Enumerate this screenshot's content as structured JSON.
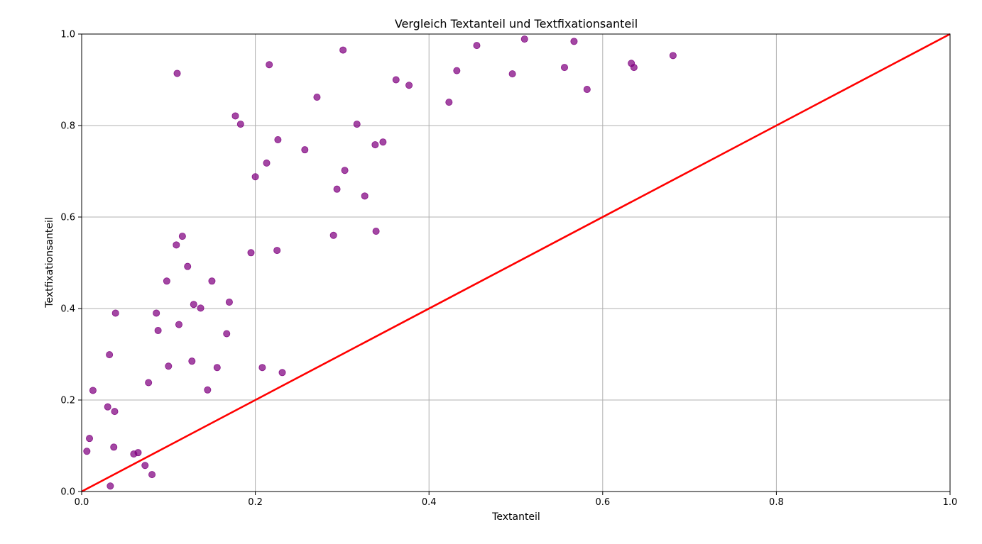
{
  "chart_data": {
    "type": "scatter",
    "title": "Vergleich Textanteil und Textfixationsanteil",
    "xlabel": "Textanteil",
    "ylabel": "Textfixationsanteil",
    "xlim": [
      0.0,
      1.0
    ],
    "ylim": [
      0.0,
      1.0
    ],
    "xticks": [
      "0.0",
      "0.2",
      "0.4",
      "0.6",
      "0.8",
      "1.0"
    ],
    "yticks": [
      "0.0",
      "0.2",
      "0.4",
      "0.6",
      "0.8",
      "1.0"
    ],
    "grid": true,
    "point_color": "#800080",
    "line_color": "#ff0000",
    "reference_line": {
      "x": [
        0.0,
        1.0
      ],
      "y": [
        0.0,
        1.0
      ]
    },
    "points": [
      {
        "x": 0.006,
        "y": 0.088
      },
      {
        "x": 0.009,
        "y": 0.116
      },
      {
        "x": 0.013,
        "y": 0.221
      },
      {
        "x": 0.03,
        "y": 0.185
      },
      {
        "x": 0.032,
        "y": 0.299
      },
      {
        "x": 0.033,
        "y": 0.012
      },
      {
        "x": 0.037,
        "y": 0.097
      },
      {
        "x": 0.038,
        "y": 0.175
      },
      {
        "x": 0.039,
        "y": 0.39
      },
      {
        "x": 0.06,
        "y": 0.082
      },
      {
        "x": 0.065,
        "y": 0.085
      },
      {
        "x": 0.073,
        "y": 0.057
      },
      {
        "x": 0.077,
        "y": 0.238
      },
      {
        "x": 0.081,
        "y": 0.037
      },
      {
        "x": 0.086,
        "y": 0.39
      },
      {
        "x": 0.088,
        "y": 0.352
      },
      {
        "x": 0.098,
        "y": 0.46
      },
      {
        "x": 0.1,
        "y": 0.274
      },
      {
        "x": 0.109,
        "y": 0.539
      },
      {
        "x": 0.11,
        "y": 0.914
      },
      {
        "x": 0.112,
        "y": 0.365
      },
      {
        "x": 0.116,
        "y": 0.558
      },
      {
        "x": 0.122,
        "y": 0.492
      },
      {
        "x": 0.127,
        "y": 0.285
      },
      {
        "x": 0.129,
        "y": 0.409
      },
      {
        "x": 0.137,
        "y": 0.401
      },
      {
        "x": 0.145,
        "y": 0.222
      },
      {
        "x": 0.15,
        "y": 0.46
      },
      {
        "x": 0.156,
        "y": 0.271
      },
      {
        "x": 0.167,
        "y": 0.345
      },
      {
        "x": 0.17,
        "y": 0.414
      },
      {
        "x": 0.177,
        "y": 0.821
      },
      {
        "x": 0.183,
        "y": 0.803
      },
      {
        "x": 0.195,
        "y": 0.522
      },
      {
        "x": 0.2,
        "y": 0.688
      },
      {
        "x": 0.208,
        "y": 0.271
      },
      {
        "x": 0.213,
        "y": 0.718
      },
      {
        "x": 0.216,
        "y": 0.933
      },
      {
        "x": 0.225,
        "y": 0.527
      },
      {
        "x": 0.226,
        "y": 0.769
      },
      {
        "x": 0.231,
        "y": 0.26
      },
      {
        "x": 0.257,
        "y": 0.747
      },
      {
        "x": 0.271,
        "y": 0.862
      },
      {
        "x": 0.29,
        "y": 0.56
      },
      {
        "x": 0.294,
        "y": 0.661
      },
      {
        "x": 0.301,
        "y": 0.965
      },
      {
        "x": 0.303,
        "y": 0.702
      },
      {
        "x": 0.317,
        "y": 0.803
      },
      {
        "x": 0.326,
        "y": 0.646
      },
      {
        "x": 0.338,
        "y": 0.758
      },
      {
        "x": 0.339,
        "y": 0.569
      },
      {
        "x": 0.347,
        "y": 0.764
      },
      {
        "x": 0.362,
        "y": 0.9
      },
      {
        "x": 0.377,
        "y": 0.888
      },
      {
        "x": 0.423,
        "y": 0.851
      },
      {
        "x": 0.432,
        "y": 0.92
      },
      {
        "x": 0.455,
        "y": 0.975
      },
      {
        "x": 0.496,
        "y": 0.913
      },
      {
        "x": 0.51,
        "y": 0.989
      },
      {
        "x": 0.556,
        "y": 0.927
      },
      {
        "x": 0.567,
        "y": 0.984
      },
      {
        "x": 0.582,
        "y": 0.879
      },
      {
        "x": 0.633,
        "y": 0.936
      },
      {
        "x": 0.636,
        "y": 0.927
      },
      {
        "x": 0.681,
        "y": 0.953
      }
    ]
  }
}
